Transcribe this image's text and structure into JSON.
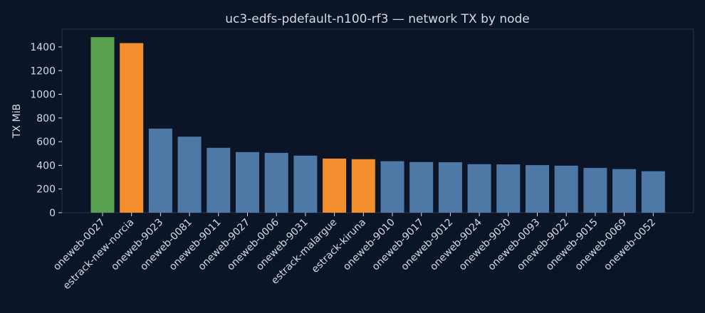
{
  "chart_data": {
    "type": "bar",
    "title": "uc3-edfs-pdefault-n100-rf3 — network TX by node",
    "xlabel": "",
    "ylabel": "TX MiB",
    "ylim": [
      0,
      1550
    ],
    "yticks": [
      0,
      200,
      400,
      600,
      800,
      1000,
      1200,
      1400
    ],
    "grid": false,
    "legend": "none",
    "categories": [
      "oneweb-0027",
      "estrack-new-norcia",
      "oneweb-9023",
      "oneweb-0081",
      "oneweb-9011",
      "oneweb-9027",
      "oneweb-0006",
      "oneweb-9031",
      "estrack-malargue",
      "estrack-kiruna",
      "oneweb-9010",
      "oneweb-9017",
      "oneweb-9012",
      "oneweb-9024",
      "oneweb-9030",
      "oneweb-0093",
      "oneweb-9022",
      "oneweb-9015",
      "oneweb-0069",
      "oneweb-0052"
    ],
    "values": [
      1483,
      1432,
      710,
      642,
      548,
      512,
      505,
      482,
      457,
      452,
      435,
      428,
      426,
      410,
      408,
      402,
      397,
      378,
      368,
      350
    ],
    "colors": {
      "oneweb-0027": "#59a14f",
      "estrack": "#f28e2b",
      "default": "#4e79a7"
    },
    "bar_colors": [
      "#59a14f",
      "#f28e2b",
      "#4e79a7",
      "#4e79a7",
      "#4e79a7",
      "#4e79a7",
      "#4e79a7",
      "#4e79a7",
      "#f28e2b",
      "#f28e2b",
      "#4e79a7",
      "#4e79a7",
      "#4e79a7",
      "#4e79a7",
      "#4e79a7",
      "#4e79a7",
      "#4e79a7",
      "#4e79a7",
      "#4e79a7",
      "#4e79a7"
    ]
  }
}
